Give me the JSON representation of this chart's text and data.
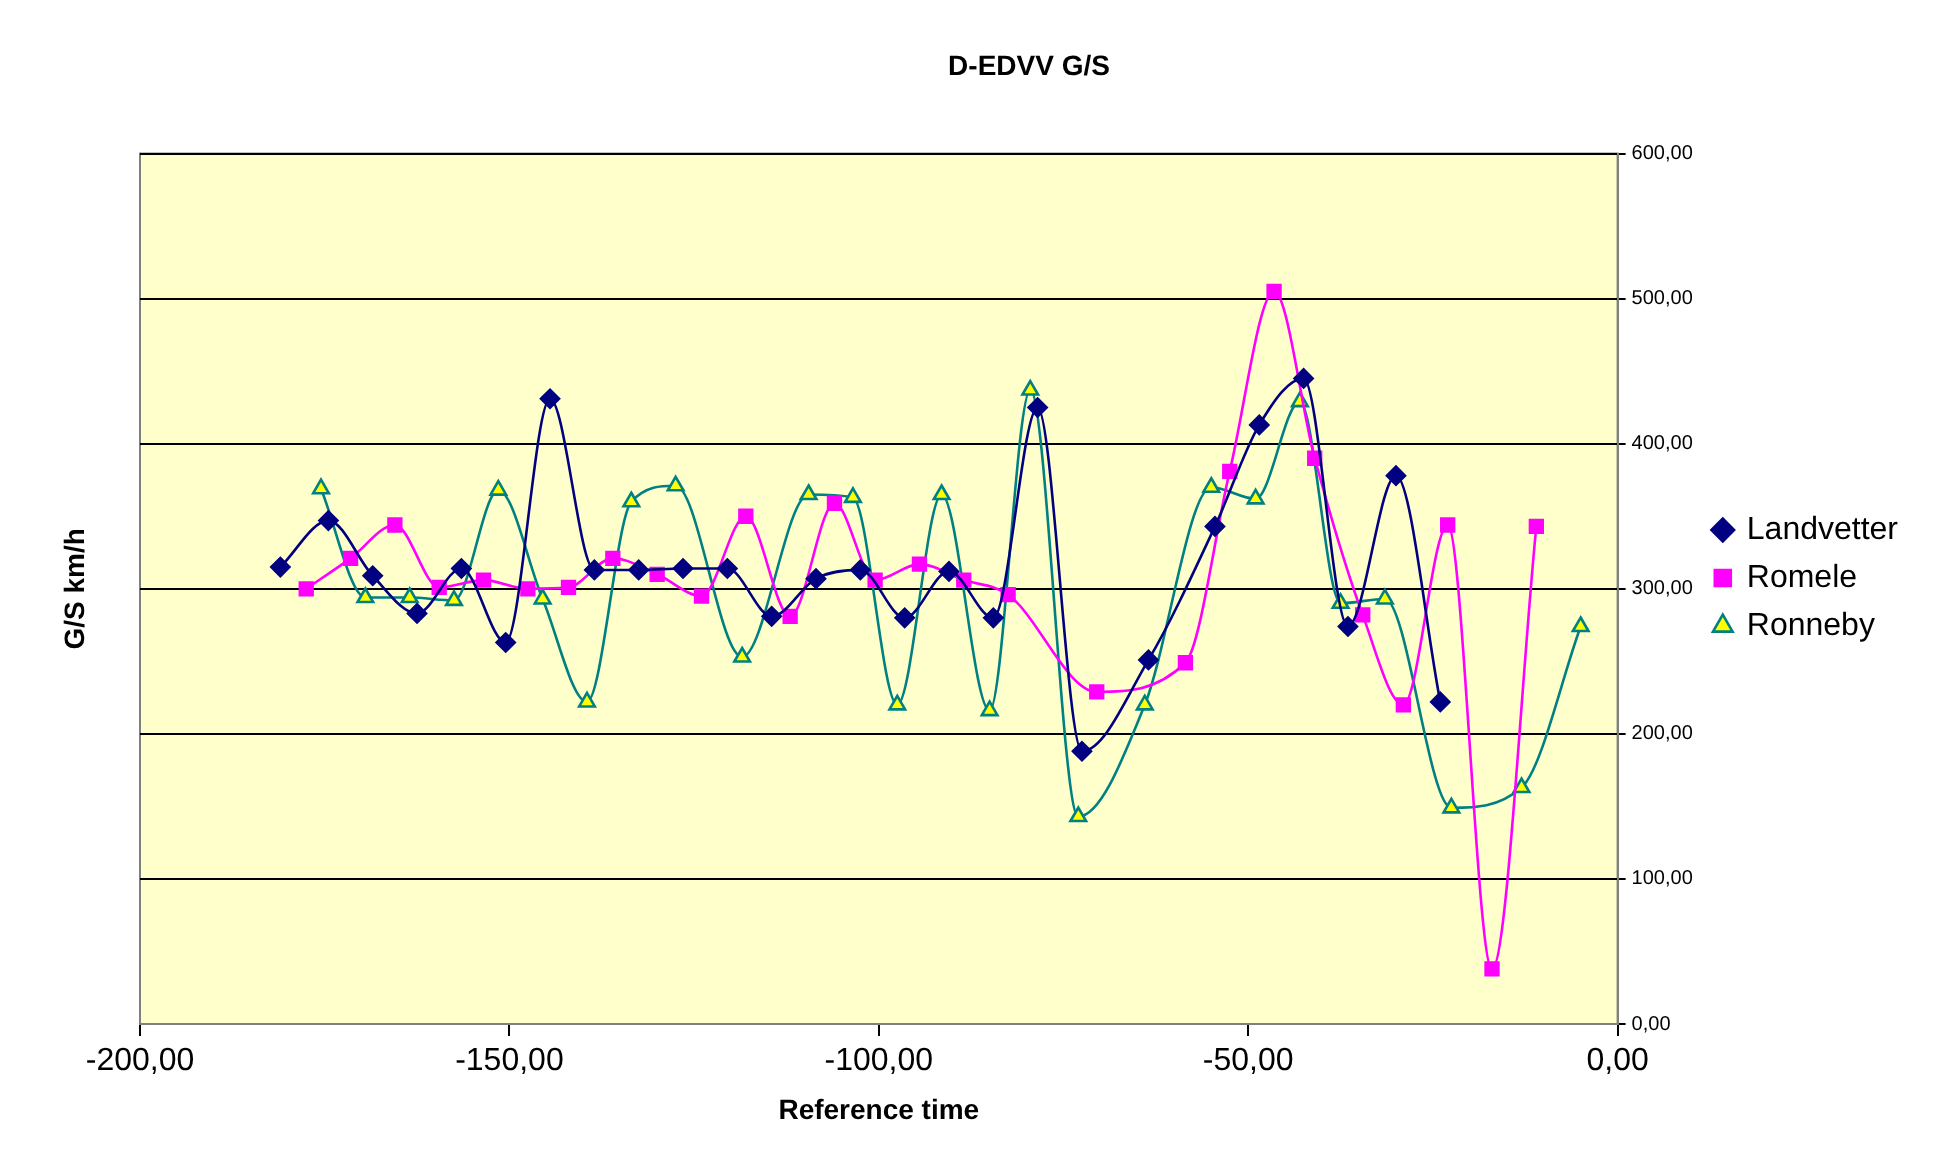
{
  "chart_data": {
    "type": "line",
    "title": "D-EDVV G/S",
    "xlabel": "Reference time",
    "ylabel": "G/S km/h",
    "xlim": [
      -200,
      0
    ],
    "xticks": [
      {
        "value": -200,
        "label": "-200,00"
      },
      {
        "value": -150,
        "label": "-150,00"
      },
      {
        "value": -100,
        "label": "-100,00"
      },
      {
        "value": -50,
        "label": "-50,00"
      },
      {
        "value": 0,
        "label": "0,00"
      }
    ],
    "ylim": [
      0,
      600
    ],
    "yticks": [
      {
        "value": 0,
        "label": "0,00"
      },
      {
        "value": 100,
        "label": "100,00"
      },
      {
        "value": 200,
        "label": "200,00"
      },
      {
        "value": 300,
        "label": "300,00"
      },
      {
        "value": 400,
        "label": "400,00"
      },
      {
        "value": 500,
        "label": "500,00"
      },
      {
        "value": 600,
        "label": "600,00"
      }
    ],
    "grid": "y",
    "legend": "right",
    "line_style": "solid",
    "series": [
      {
        "name": "Landvetter",
        "color": "#000080",
        "marker": "diamond",
        "x": [
          -181,
          -174.5,
          -168.5,
          -162.5,
          -156.5,
          -150.5,
          -144.5,
          -138.5,
          -132.5,
          -126.5,
          -120.5,
          -114.5,
          -108.5,
          -102.5,
          -96.5,
          -90.5,
          -84.5,
          -78.5,
          -72.5,
          -63.5,
          -54.5,
          -48.5,
          -42.5,
          -36.5,
          -30,
          -24
        ],
        "values": [
          315,
          347,
          309,
          283,
          314,
          263,
          431,
          313,
          313,
          314,
          314,
          281,
          307,
          313,
          280,
          312,
          280,
          425,
          188,
          251,
          343,
          413,
          445,
          274,
          378,
          222
        ]
      },
      {
        "name": "Romele",
        "color": "#ff00ff",
        "marker": "square",
        "x": [
          -177.5,
          -171.5,
          -165.5,
          -159.5,
          -153.5,
          -147.5,
          -142,
          -136,
          -130,
          -124,
          -118,
          -112,
          -106,
          -100.5,
          -94.5,
          -88.5,
          -82.5,
          -70.5,
          -58.5,
          -52.5,
          -46.5,
          -41,
          -34.5,
          -29,
          -23,
          -17,
          -11
        ],
        "values": [
          300,
          321,
          344,
          301,
          306,
          300,
          301,
          321,
          310,
          295,
          350,
          281,
          359,
          306,
          317,
          306,
          296,
          229,
          249,
          381,
          505,
          390,
          282,
          220,
          344,
          38,
          343
        ]
      },
      {
        "name": "Ronneby",
        "color": "#008080",
        "marker": "triangle",
        "x": [
          -175.5,
          -169.5,
          -163.5,
          -157.5,
          -151.5,
          -145.5,
          -139.5,
          -133.5,
          -127.5,
          -118.5,
          -109.5,
          -103.5,
          -97.5,
          -91.5,
          -85,
          -79.5,
          -73,
          -64,
          -55,
          -49,
          -43,
          -37.5,
          -31.5,
          -22.5,
          -13,
          -5
        ],
        "values": [
          369,
          294,
          294,
          292,
          368,
          293,
          222,
          360,
          371,
          253,
          365,
          363,
          220,
          365,
          216,
          437,
          143,
          220,
          370,
          362,
          429,
          290,
          293,
          149,
          163,
          274
        ]
      }
    ]
  }
}
